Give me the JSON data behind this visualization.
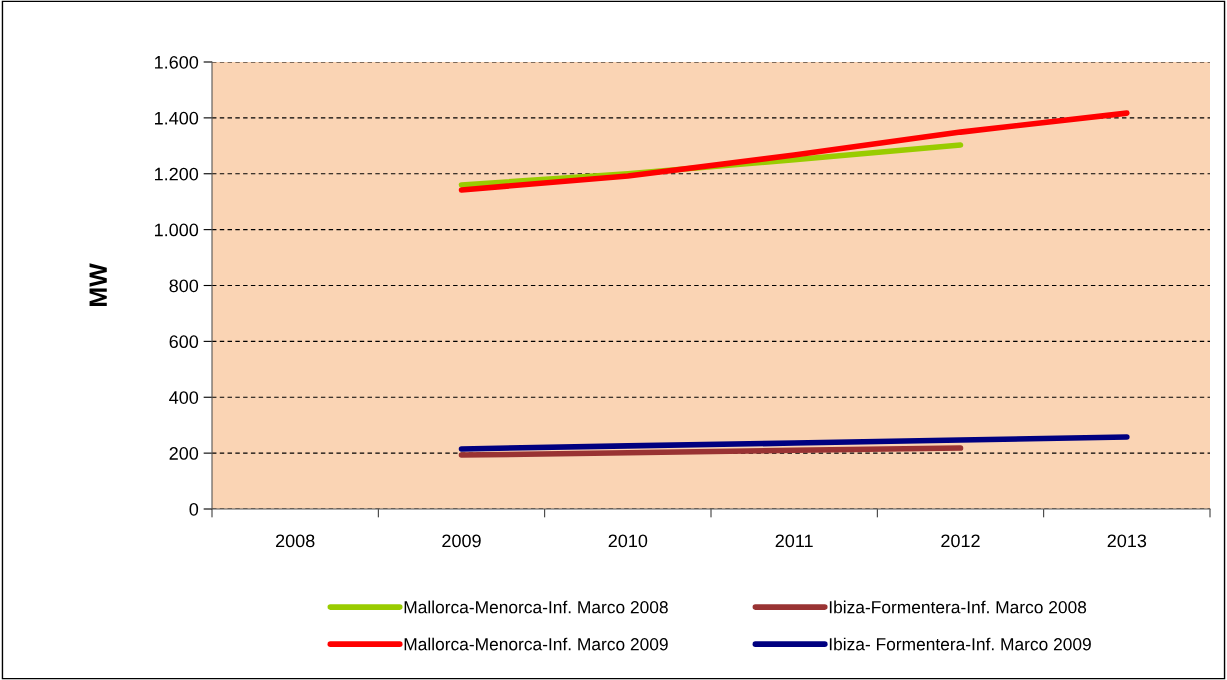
{
  "chart_data": {
    "type": "line",
    "ylabel": "MW",
    "categories": [
      "2008",
      "2009",
      "2010",
      "2011",
      "2012",
      "2013"
    ],
    "series": [
      {
        "name": "Mallorca-Menorca-Inf. Marco 2008",
        "color": "#99cc00",
        "values": [
          null,
          1160,
          1200,
          1250,
          1303,
          null
        ]
      },
      {
        "name": "Mallorca-Menorca-Inf. Marco 2009",
        "color": "#ff0000",
        "values": [
          null,
          1142,
          1192,
          1267,
          1349,
          1417
        ]
      },
      {
        "name": "Ibiza-Formentera-Inf. Marco 2008",
        "color": "#993333",
        "values": [
          null,
          193,
          201,
          210,
          218,
          null
        ]
      },
      {
        "name": "Ibiza- Formentera-Inf. Marco 2009",
        "color": "#000080",
        "values": [
          null,
          215,
          226,
          236,
          247,
          258
        ]
      }
    ],
    "ylim": [
      0,
      1600
    ],
    "yticks": [
      {
        "value": 0,
        "label": "0"
      },
      {
        "value": 200,
        "label": "200"
      },
      {
        "value": 400,
        "label": "400"
      },
      {
        "value": 600,
        "label": "600"
      },
      {
        "value": 800,
        "label": "800"
      },
      {
        "value": 1000,
        "label": "1.000"
      },
      {
        "value": 1200,
        "label": "1.200"
      },
      {
        "value": 1400,
        "label": "1.400"
      },
      {
        "value": 1600,
        "label": "1.600"
      }
    ],
    "grid": "y",
    "legend": "bottom",
    "marker": "none",
    "line_style": "solid"
  }
}
